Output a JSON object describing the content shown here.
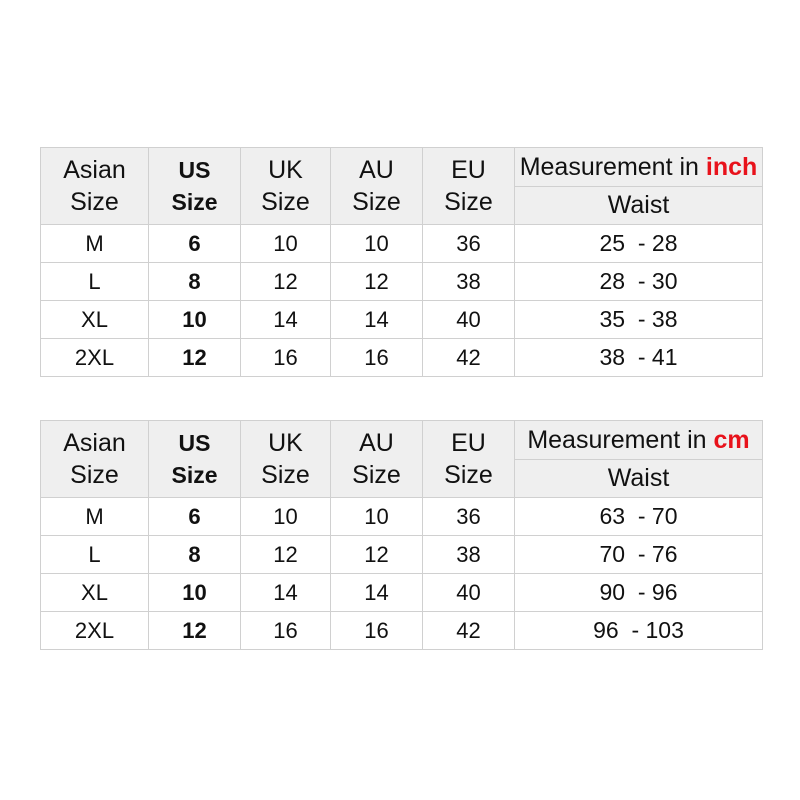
{
  "tables": [
    {
      "headers": {
        "asian": "Asian Size",
        "us": "US Size",
        "uk": "UK Size",
        "au": "AU Size",
        "eu": "EU Size"
      },
      "measurement_prefix": "Measurement in ",
      "measurement_unit": "inch",
      "waist_label": "Waist",
      "rows": [
        {
          "asian": "M",
          "us": "6",
          "uk": "10",
          "au": "10",
          "eu": "36",
          "waist": "25  - 28"
        },
        {
          "asian": "L",
          "us": "8",
          "uk": "12",
          "au": "12",
          "eu": "38",
          "waist": "28  - 30"
        },
        {
          "asian": "XL",
          "us": "10",
          "uk": "14",
          "au": "14",
          "eu": "40",
          "waist": "35  - 38"
        },
        {
          "asian": "2XL",
          "us": "12",
          "uk": "16",
          "au": "16",
          "eu": "42",
          "waist": "38  - 41"
        }
      ]
    },
    {
      "headers": {
        "asian": "Asian Size",
        "us": "US Size",
        "uk": "UK Size",
        "au": "AU Size",
        "eu": "EU Size"
      },
      "measurement_prefix": "Measurement in ",
      "measurement_unit": "cm",
      "waist_label": "Waist",
      "rows": [
        {
          "asian": "M",
          "us": "6",
          "uk": "10",
          "au": "10",
          "eu": "36",
          "waist": "63  - 70"
        },
        {
          "asian": "L",
          "us": "8",
          "uk": "12",
          "au": "12",
          "eu": "38",
          "waist": "70  - 76"
        },
        {
          "asian": "XL",
          "us": "10",
          "uk": "14",
          "au": "14",
          "eu": "40",
          "waist": "90  - 96"
        },
        {
          "asian": "2XL",
          "us": "12",
          "uk": "16",
          "au": "16",
          "eu": "42",
          "waist": "96  - 103"
        }
      ]
    }
  ],
  "colors": {
    "header_bg": "#efefef",
    "border": "#d0d0d0",
    "unit_accent": "#e8121b",
    "text": "#111111"
  }
}
